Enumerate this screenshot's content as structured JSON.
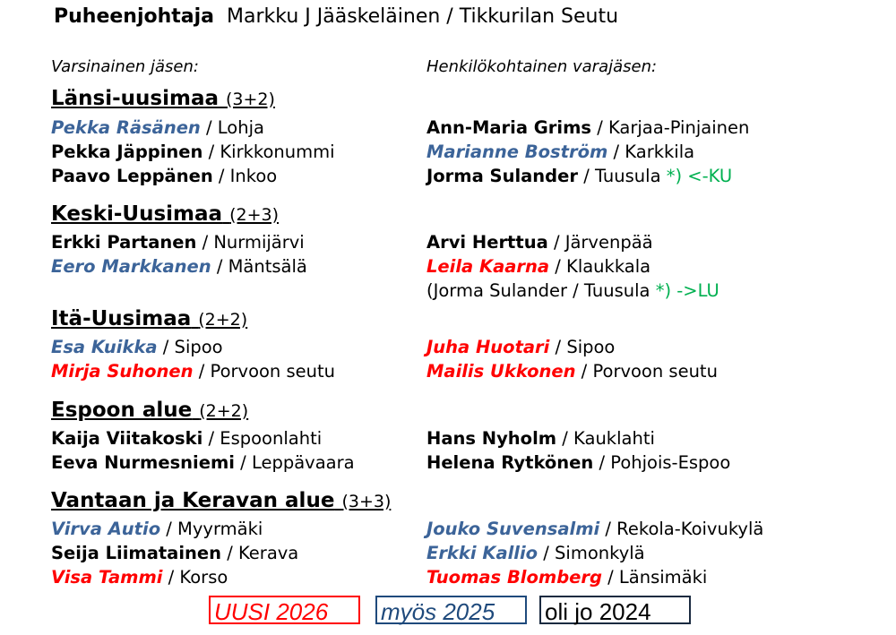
{
  "header": {
    "role": "Puheenjohtaja",
    "person": "Markku J Jääskeläinen / Tikkurilan Seutu"
  },
  "columns": {
    "left": "Varsinainen jäsen:",
    "right": "Henkilökohtainen varajäsen:"
  },
  "colors": {
    "new": "#ff0000",
    "also": "#3c6499",
    "old": "#000000",
    "note": "#00b050"
  },
  "sections": [
    {
      "title": "Länsi-uusimaa",
      "count": "(3+2)",
      "rows": [
        {
          "left": {
            "name": "Pekka Räsänen",
            "place": " / Lohja",
            "status": "also"
          },
          "right": {
            "name": "Ann-Maria Grims",
            "place": " / Karjaa-Pinjainen",
            "status": "old"
          }
        },
        {
          "left": {
            "name": "Pekka Jäppinen",
            "place": " / Kirkkonummi",
            "status": "old"
          },
          "right": {
            "name": "Marianne Boström",
            "place": " / Karkkila",
            "status": "also"
          }
        },
        {
          "left": {
            "name": "Paavo Leppänen",
            "place": " / Inkoo",
            "status": "old"
          },
          "right": {
            "name": "Jorma Sulander",
            "place": " / Tuusula ",
            "status": "old",
            "note": "*) <-KU"
          }
        }
      ]
    },
    {
      "title": "Keski-Uusimaa",
      "count": "(2+3)",
      "rows": [
        {
          "left": {
            "name": "Erkki Partanen",
            "place": " / Nurmijärvi",
            "status": "old"
          },
          "right": {
            "name": "Arvi Herttua",
            "place": " / Järvenpää",
            "status": "old"
          }
        },
        {
          "left": {
            "name": "Eero Markkanen",
            "place": " / Mäntsälä",
            "status": "also"
          },
          "right": {
            "name": "Leila Kaarna",
            "place": " / Klaukkala",
            "status": "new"
          }
        },
        {
          "right": {
            "plain": "(Jorma Sulander / Tuusula ",
            "note": "*) ->LU"
          }
        }
      ]
    },
    {
      "title": "Itä-Uusimaa",
      "count": "(2+2)",
      "rows": [
        {
          "left": {
            "name": "Esa Kuikka",
            "place": " / Sipoo",
            "status": "also"
          },
          "right": {
            "name": "Juha Huotari",
            "place": " / Sipoo",
            "status": "new"
          }
        },
        {
          "left": {
            "name": "Mirja Suhonen",
            "place": " / Porvoon seutu",
            "status": "new"
          },
          "right": {
            "name": "Mailis Ukkonen",
            "place": " / Porvoon seutu",
            "status": "new"
          }
        }
      ]
    },
    {
      "title": "Espoon alue",
      "count": "(2+2)",
      "rows": [
        {
          "left": {
            "name": "Kaija Viitakoski",
            "place": " / Espoonlahti",
            "status": "old"
          },
          "right": {
            "name": "Hans Nyholm",
            "place": " / Kauklahti",
            "status": "old"
          }
        },
        {
          "left": {
            "name": "Eeva Nurmesniemi",
            "place": " / Leppävaara",
            "status": "old"
          },
          "right": {
            "name": "Helena Rytkönen",
            "place": " / Pohjois-Espoo",
            "status": "old"
          }
        }
      ]
    },
    {
      "title": "Vantaan ja Keravan alue",
      "count": "(3+3)",
      "rows": [
        {
          "left": {
            "name": "Virva Autio",
            "place": " / Myyrmäki",
            "status": "also"
          },
          "right": {
            "name": "Jouko Suvensalmi",
            "place": " / Rekola-Koivukylä",
            "status": "also"
          }
        },
        {
          "left": {
            "name": "Seija Liimatainen",
            "place": " / Kerava",
            "status": "old"
          },
          "right": {
            "name": "Erkki Kallio",
            "place": " / Simonkylä",
            "status": "also"
          }
        },
        {
          "left": {
            "name": "Visa Tammi",
            "place": " / Korso",
            "status": "new"
          },
          "right": {
            "name": "Tuomas Blomberg",
            "place": " / Länsimäki",
            "status": "new"
          }
        }
      ]
    }
  ],
  "legend": {
    "new": "UUSI 2026",
    "also": "myös 2025",
    "old": "oli jo 2024"
  }
}
